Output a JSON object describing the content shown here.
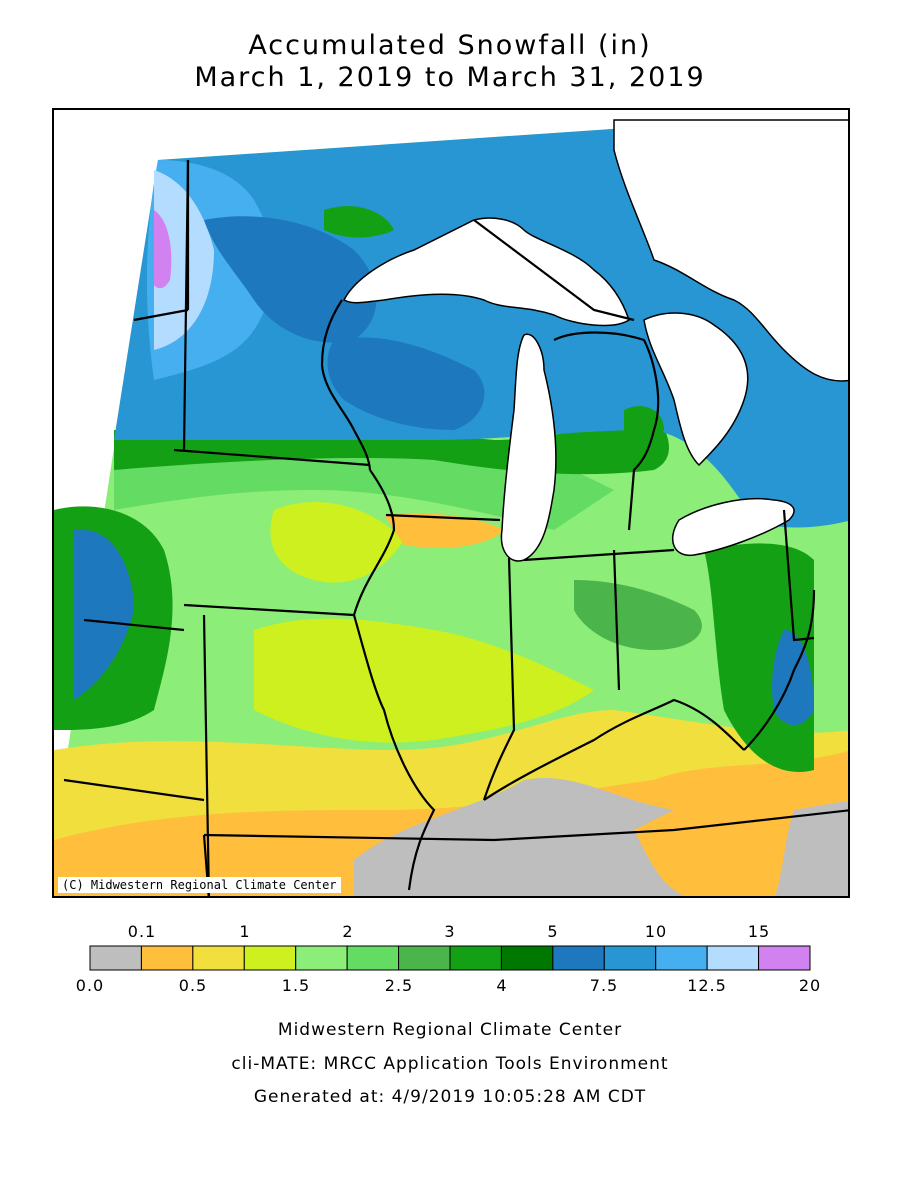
{
  "title": {
    "line1": "Accumulated Snowfall (in)",
    "line2": "March 1, 2019 to March 31, 2019"
  },
  "map": {
    "credit": "(C) Midwestern Regional Climate Center",
    "background_color": "#ffffff",
    "lake_color": "#ffffff",
    "border_color": "#000000"
  },
  "legend": {
    "top_labels": [
      "0.1",
      "1",
      "2",
      "3",
      "5",
      "10",
      "15"
    ],
    "bottom_labels": [
      "0.0",
      "0.5",
      "1.5",
      "2.5",
      "4",
      "7.5",
      "12.5",
      "20"
    ],
    "colors": [
      "#bebebe",
      "#ffbe3c",
      "#f0df3c",
      "#cdf01e",
      "#8ced78",
      "#64dc64",
      "#4bb44b",
      "#14a014",
      "#007800",
      "#1e78be",
      "#2896d2",
      "#46aff0",
      "#b4dcff",
      "#d282f0"
    ]
  },
  "footer": {
    "line1": "Midwestern Regional Climate Center",
    "line2": "cli-MATE: MRCC Application Tools Environment",
    "line3": "Generated at: 4/9/2019 10:05:28 AM CDT"
  }
}
